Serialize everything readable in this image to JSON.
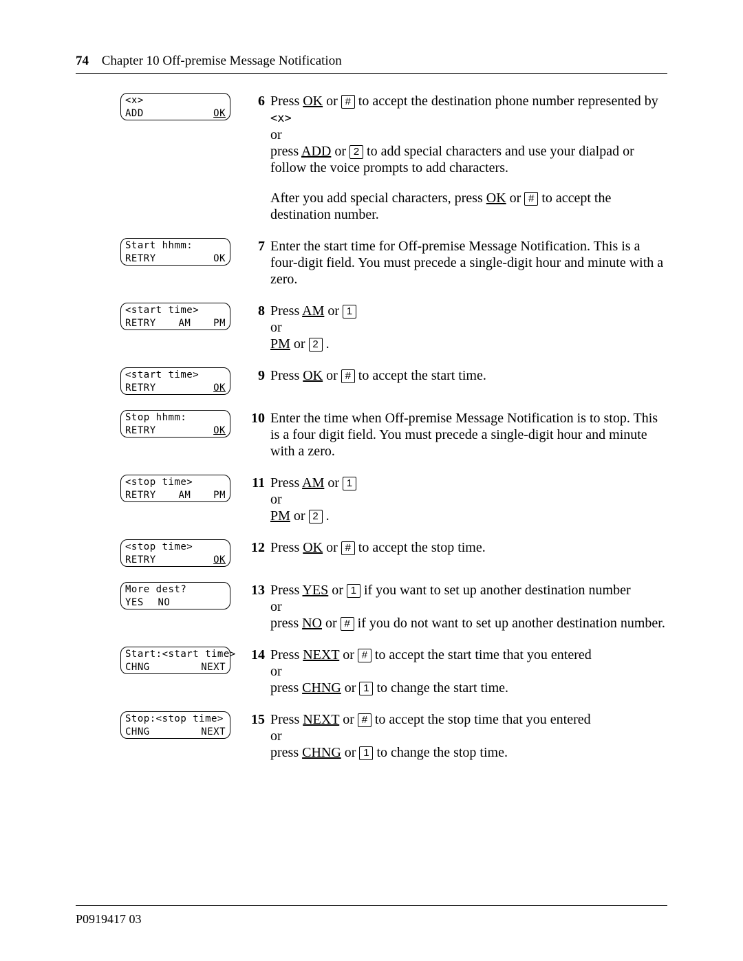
{
  "page_number": "74",
  "chapter": "Chapter 10  Off-premise Message Notification",
  "footer": "P0919417 03",
  "steps": [
    {
      "num": "6",
      "lcd": {
        "line1": "<x>",
        "left": "ADD",
        "mid": "",
        "right": "OK",
        "right_ul": true
      },
      "text": "Press <sk>OK</sk> or <key>#</key> to accept the destination phone number represented by <mono>&lt;x&gt;</mono><br>or<br>press <sk>ADD</sk> or <key>2</key> to add special characters and use your dialpad or follow the voice prompts to add characters.<gap>After you add special characters, press <sk>OK</sk> or <key>#</key> to accept the destination number."
    },
    {
      "num": "7",
      "lcd": {
        "line1": "Start hhmm:",
        "left": "RETRY",
        "mid": "",
        "right": "OK"
      },
      "text": "Enter the start time for Off-premise Message Notification. This is a four-digit field. You must precede a single-digit hour and minute with a zero."
    },
    {
      "num": "8",
      "lcd": {
        "line1": "<start time>",
        "left": "RETRY",
        "mid": "AM",
        "right": "PM"
      },
      "text": "Press <sk>AM</sk> or <key>1</key><br>or<br><sk>PM</sk> or <key>2</key> ."
    },
    {
      "num": "9",
      "lcd": {
        "line1": "<start time>",
        "left": "RETRY",
        "mid": "",
        "right": "OK",
        "right_ul": true
      },
      "text": "Press <sk>OK</sk> or <key>#</key> to accept the start time."
    },
    {
      "num": "10",
      "lcd": {
        "line1": "Stop hhmm:",
        "left": "RETRY",
        "mid": "",
        "right": "OK",
        "right_ul": true
      },
      "text": "Enter the time when Off-premise Message Notification is to stop. This is a four digit field. You must precede a single-digit hour and minute with a zero."
    },
    {
      "num": "11",
      "lcd": {
        "line1": "<stop time>",
        "left": "RETRY",
        "mid": "AM",
        "right": "PM"
      },
      "text": "Press <sk>AM</sk> or <key>1</key><br>or<br><sk>PM</sk> or <key>2</key> ."
    },
    {
      "num": "12",
      "lcd": {
        "line1": "<stop time>",
        "left": "RETRY",
        "mid": "",
        "right": "OK",
        "right_ul": true
      },
      "text": "Press <sk>OK</sk> or <key>#</key> to accept the stop time."
    },
    {
      "num": "13",
      "lcd": {
        "line1": "More dest?",
        "left": "YES",
        "mid": "NO",
        "mid_shift": true,
        "right": ""
      },
      "text": "Press <sk>YES</sk> or <key>1</key> if you want to set up another destination number<br>or<br>press <sk>NO</sk> or <key>#</key> if you do not want to set up another destination number."
    },
    {
      "num": "14",
      "lcd": {
        "line1": "Start:<start time>",
        "left": "CHNG",
        "mid": "",
        "right": "NEXT"
      },
      "text": "Press <sk>NEXT</sk> or <key>#</key> to accept the start time that you entered<br>or<br>press <sk>CHNG</sk> or <key>1</key> to change the start time."
    },
    {
      "num": "15",
      "lcd": {
        "line1": "Stop:<stop time>",
        "left": "CHNG",
        "mid": "",
        "right": "NEXT"
      },
      "text": "Press <sk>NEXT</sk> or <key>#</key> to accept the stop time that you entered<br>or<br>press <sk>CHNG</sk> or <key>1</key> to change the stop time."
    }
  ]
}
